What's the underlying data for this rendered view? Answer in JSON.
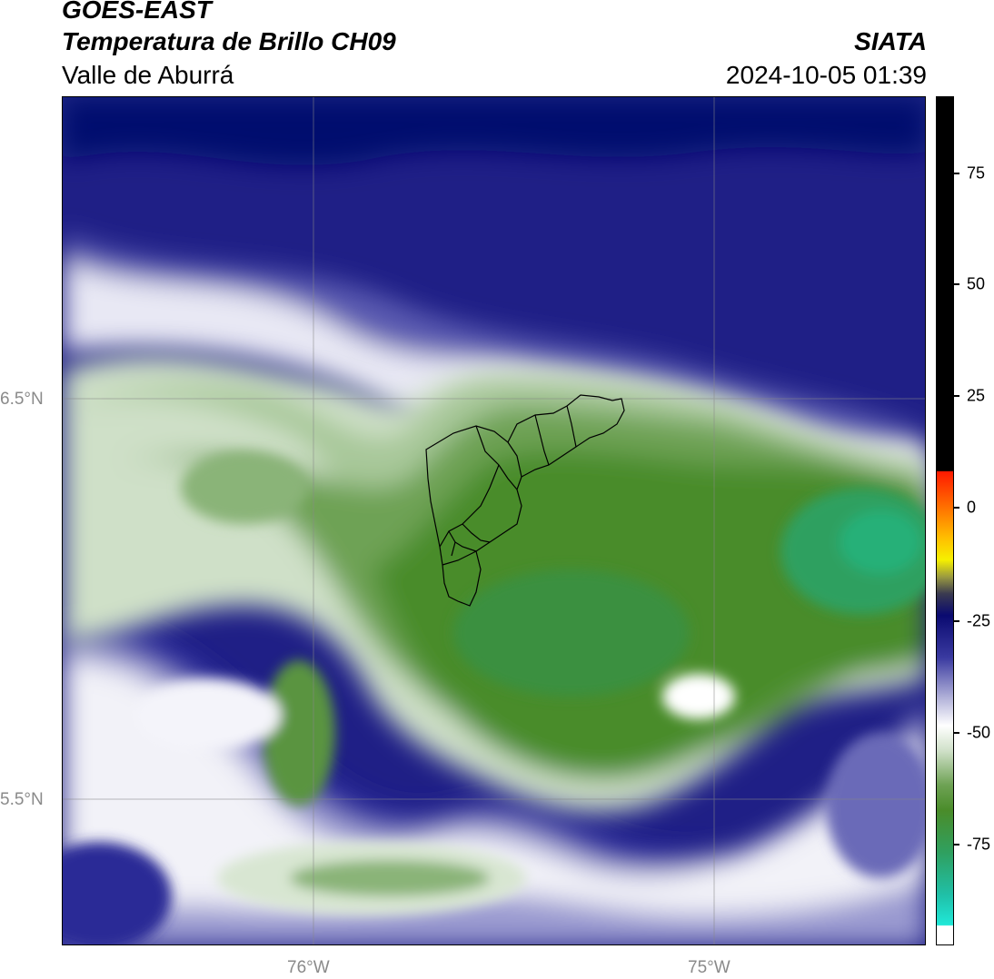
{
  "header": {
    "satellite": "GOES-EAST",
    "product": "Temperatura de Brillo CH09",
    "region": "Valle de Aburrá",
    "agency": "SIATA",
    "timestamp": "2024-10-05 01:39"
  },
  "map": {
    "lat_labels": [
      "6.5°N",
      "5.5°N"
    ],
    "lon_labels": [
      "76°W",
      "75°W"
    ],
    "gridlines": true
  },
  "colorbar": {
    "ticks": [
      "75",
      "50",
      "25",
      "0",
      "-25",
      "-50",
      "-75"
    ],
    "colors": {
      "hot": "#000000",
      "red": "#ff2200",
      "orange": "#ff8800",
      "yellow": "#ffee00",
      "navy": "#0a0a70",
      "blue": "#3a3aa0",
      "lavender": "#b8b8dc",
      "white": "#ffffff",
      "pale_green": "#cfe0c8",
      "green": "#4a8c2a",
      "sea_green": "#2fa060",
      "turquoise": "#20d8c8"
    }
  }
}
